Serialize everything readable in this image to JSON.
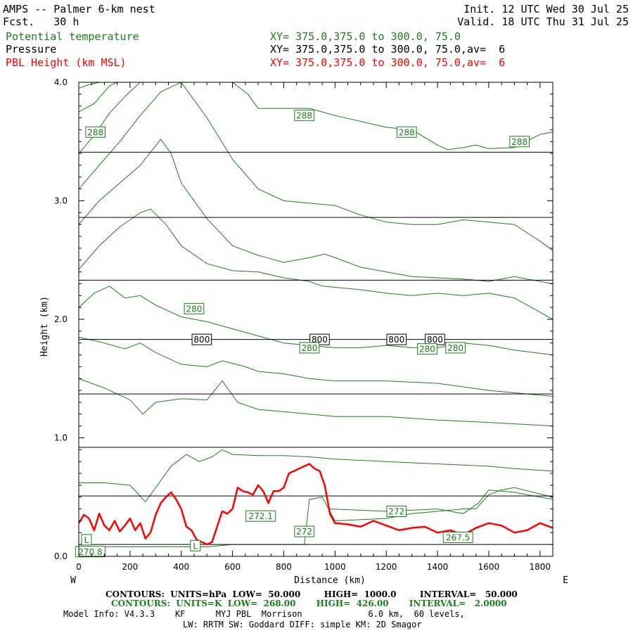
{
  "header": {
    "title": "AMPS -- Palmer 6-km nest",
    "fcst": "Fcst.   30 h",
    "init": "Init. 12 UTC Wed 30 Jul 25",
    "valid": "Valid. 18 UTC Thu 31 Jul 25",
    "fields": [
      {
        "name": "Potential temperature",
        "xy": "XY= 375.0,375.0 to 300.0, 75.0",
        "color": "#1a7f1a"
      },
      {
        "name": "Pressure",
        "xy": "XY= 375.0,375.0 to 300.0, 75.0,av=  6",
        "color": "#000000"
      },
      {
        "name": "PBL Height (km MSL)",
        "xy": "XY= 375.0,375.0 to 300.0, 75.0,av=  6",
        "color": "#ff0000"
      }
    ]
  },
  "chart_data": {
    "type": "line",
    "xlabel": "Distance (km)",
    "ylabel": "Height (km)",
    "xlim": [
      0,
      1850
    ],
    "ylim": [
      0,
      4.0
    ],
    "xticks": [
      "0",
      "200",
      "400",
      "600",
      "800",
      "1000",
      "1200",
      "1400",
      "1600",
      "1800"
    ],
    "yticks": [
      "0.0",
      "1.0",
      "2.0",
      "3.0",
      "4.0"
    ],
    "left_end_label": "W",
    "right_end_label": "E",
    "pressure_contours": {
      "color": "#000000",
      "levels_km": [
        0.1,
        0.51,
        0.92,
        1.37,
        1.83,
        2.33,
        2.86,
        3.41
      ],
      "labels": [
        {
          "text": "800",
          "x": 480,
          "y": 1.83
        },
        {
          "text": "800",
          "x": 940,
          "y": 1.83
        },
        {
          "text": "800",
          "x": 1240,
          "y": 1.83
        },
        {
          "text": "800",
          "x": 1390,
          "y": 1.83
        }
      ]
    },
    "theta_contours": {
      "color": "#1a7f1a",
      "series": [
        {
          "x": [
            0,
            100,
            200,
            260,
            300,
            360,
            420,
            470,
            520,
            560,
            600,
            700,
            800,
            900,
            1000,
            1200,
            1400,
            1600,
            1700,
            1850
          ],
          "y": [
            0.62,
            0.62,
            0.6,
            0.46,
            0.58,
            0.76,
            0.86,
            0.8,
            0.84,
            0.9,
            0.86,
            0.85,
            0.85,
            0.84,
            0.82,
            0.8,
            0.78,
            0.76,
            0.74,
            0.72
          ]
        },
        {
          "x": [
            0,
            100,
            200,
            250,
            300,
            400,
            500,
            560,
            620,
            700,
            800,
            900,
            1000,
            1200,
            1400,
            1600,
            1850
          ],
          "y": [
            1.5,
            1.42,
            1.32,
            1.2,
            1.3,
            1.33,
            1.32,
            1.48,
            1.3,
            1.24,
            1.22,
            1.2,
            1.18,
            1.18,
            1.15,
            1.13,
            1.1
          ]
        },
        {
          "x": [
            0,
            100,
            180,
            240,
            300,
            400,
            500,
            560,
            650,
            700,
            800,
            900,
            1000,
            1200,
            1400,
            1600,
            1850
          ],
          "y": [
            1.85,
            1.8,
            1.75,
            1.8,
            1.72,
            1.62,
            1.6,
            1.65,
            1.6,
            1.56,
            1.54,
            1.5,
            1.48,
            1.48,
            1.46,
            1.4,
            1.35
          ]
        },
        {
          "x": [
            0,
            60,
            120,
            180,
            240,
            300,
            400,
            500,
            600,
            700,
            800,
            900,
            1000,
            1100,
            1200,
            1300,
            1400,
            1500,
            1600,
            1700,
            1850
          ],
          "y": [
            2.1,
            2.22,
            2.28,
            2.18,
            2.2,
            2.12,
            2.02,
            1.98,
            1.92,
            1.86,
            1.8,
            1.78,
            1.76,
            1.76,
            1.78,
            1.76,
            1.76,
            1.8,
            1.78,
            1.74,
            1.7
          ]
        },
        {
          "x": [
            0,
            80,
            160,
            240,
            280,
            340,
            400,
            500,
            600,
            700,
            800,
            900,
            950,
            1000,
            1100,
            1200,
            1300,
            1400,
            1500,
            1600,
            1700,
            1850
          ],
          "y": [
            2.42,
            2.62,
            2.78,
            2.9,
            2.93,
            2.8,
            2.62,
            2.47,
            2.41,
            2.4,
            2.35,
            2.32,
            2.28,
            2.27,
            2.25,
            2.22,
            2.2,
            2.22,
            2.2,
            2.22,
            2.18,
            2.0
          ]
        },
        {
          "x": [
            0,
            80,
            160,
            240,
            320,
            360,
            400,
            500,
            600,
            700,
            800,
            900,
            960,
            1000,
            1100,
            1200,
            1300,
            1400,
            1500,
            1600,
            1700,
            1850
          ],
          "y": [
            2.8,
            3.0,
            3.15,
            3.3,
            3.52,
            3.4,
            3.15,
            2.85,
            2.62,
            2.54,
            2.48,
            2.52,
            2.55,
            2.52,
            2.44,
            2.4,
            2.36,
            2.35,
            2.34,
            2.32,
            2.36,
            2.3
          ]
        },
        {
          "x": [
            0,
            80,
            160,
            240,
            320,
            400,
            500,
            600,
            700,
            800,
            900,
            1000,
            1100,
            1200,
            1300,
            1400,
            1500,
            1600,
            1700,
            1800,
            1850
          ],
          "y": [
            3.1,
            3.3,
            3.5,
            3.72,
            3.92,
            4.0,
            3.7,
            3.35,
            3.1,
            3.0,
            2.98,
            2.96,
            2.88,
            2.82,
            2.8,
            2.8,
            2.84,
            2.82,
            2.8,
            2.66,
            2.58
          ]
        },
        {
          "x": [
            0,
            60,
            120,
            180,
            240,
            300,
            360,
            400,
            460,
            520,
            600,
            660,
            700,
            800,
            900,
            1000,
            1100,
            1200,
            1300,
            1400,
            1440,
            1500,
            1550,
            1600,
            1700,
            1800,
            1850
          ],
          "y": [
            3.4,
            3.55,
            3.74,
            3.88,
            4.0,
            4.0,
            4.0,
            4.0,
            4.0,
            4.0,
            4.0,
            3.9,
            3.78,
            3.78,
            3.78,
            3.72,
            3.67,
            3.62,
            3.6,
            3.47,
            3.43,
            3.45,
            3.47,
            3.44,
            3.45,
            3.56,
            3.58
          ]
        },
        {
          "x": [
            0,
            60,
            120,
            150
          ],
          "y": [
            3.75,
            3.82,
            3.97,
            4.0
          ]
        },
        {
          "x": [
            0,
            40,
            80
          ],
          "y": [
            3.95,
            3.98,
            4.0
          ]
        },
        {
          "x": [
            0,
            300,
            500,
            600,
            880,
            900,
            950,
            1000,
            1200,
            1300,
            1400,
            1500,
            1550,
            1600,
            1650,
            1700,
            1850
          ],
          "y": [
            0.08,
            0.08,
            0.08,
            0.1,
            0.1,
            0.48,
            0.5,
            0.3,
            0.32,
            0.36,
            0.38,
            0.4,
            0.4,
            0.52,
            0.56,
            0.58,
            0.5
          ]
        },
        {
          "x": [
            980,
            1200,
            1400,
            1500,
            1560,
            1600,
            1700,
            1850
          ],
          "y": [
            0.4,
            0.38,
            0.4,
            0.36,
            0.45,
            0.56,
            0.54,
            0.48
          ]
        }
      ],
      "labels": [
        {
          "text": "288",
          "x": 65,
          "y": 3.58
        },
        {
          "text": "288",
          "x": 880,
          "y": 3.72
        },
        {
          "text": "288",
          "x": 1280,
          "y": 3.58
        },
        {
          "text": "288",
          "x": 1720,
          "y": 3.5
        },
        {
          "text": "280",
          "x": 450,
          "y": 2.09
        },
        {
          "text": "280",
          "x": 900,
          "y": 1.76
        },
        {
          "text": "280",
          "x": 1360,
          "y": 1.75
        },
        {
          "text": "280",
          "x": 1470,
          "y": 1.76
        },
        {
          "text": "272.1",
          "x": 710,
          "y": 0.34
        },
        {
          "text": "272",
          "x": 880,
          "y": 0.21
        },
        {
          "text": "272",
          "x": 1240,
          "y": 0.38
        },
        {
          "text": "267.5",
          "x": 1480,
          "y": 0.16
        },
        {
          "text": "270.8",
          "x": 45,
          "y": 0.04
        },
        {
          "text": "L",
          "x": 30,
          "y": 0.14
        },
        {
          "text": "L",
          "x": 455,
          "y": 0.09
        }
      ]
    },
    "pbl_height": {
      "color": "#ff0000",
      "x": [
        0,
        20,
        40,
        60,
        80,
        100,
        120,
        140,
        160,
        180,
        200,
        220,
        240,
        260,
        280,
        300,
        320,
        340,
        360,
        380,
        400,
        420,
        440,
        460,
        480,
        500,
        520,
        540,
        560,
        580,
        600,
        620,
        640,
        660,
        680,
        700,
        720,
        740,
        760,
        780,
        800,
        820,
        840,
        860,
        880,
        900,
        920,
        940,
        960,
        980,
        1000,
        1050,
        1100,
        1150,
        1200,
        1250,
        1300,
        1350,
        1400,
        1450,
        1500,
        1550,
        1600,
        1650,
        1700,
        1750,
        1800,
        1850
      ],
      "y": [
        0.28,
        0.35,
        0.32,
        0.22,
        0.36,
        0.26,
        0.22,
        0.3,
        0.21,
        0.26,
        0.32,
        0.22,
        0.28,
        0.15,
        0.2,
        0.35,
        0.45,
        0.5,
        0.54,
        0.48,
        0.4,
        0.25,
        0.22,
        0.14,
        0.12,
        0.1,
        0.12,
        0.25,
        0.38,
        0.36,
        0.4,
        0.58,
        0.55,
        0.54,
        0.52,
        0.6,
        0.55,
        0.45,
        0.55,
        0.55,
        0.58,
        0.7,
        0.72,
        0.74,
        0.76,
        0.78,
        0.74,
        0.72,
        0.6,
        0.36,
        0.28,
        0.27,
        0.25,
        0.3,
        0.26,
        0.22,
        0.24,
        0.25,
        0.2,
        0.22,
        0.18,
        0.24,
        0.28,
        0.26,
        0.2,
        0.22,
        0.28,
        0.24
      ]
    }
  },
  "footer": {
    "line1": "CONTOURS:  UNITS=hPa  LOW=  50.000        HIGH=  1000.0        INTERVAL=   50.000",
    "line2": "CONTOURS:  UNITS=K  LOW=  268.00       HIGH=  426.00       INTERVAL=   2.0000",
    "line3": "Model Info: V4.3.3    KF      MYJ PBL  Morrison             6.0 km,  60 levels,",
    "line4": "LW: RRTM SW: Goddard DIFF: simple KM: 2D Smagor"
  }
}
